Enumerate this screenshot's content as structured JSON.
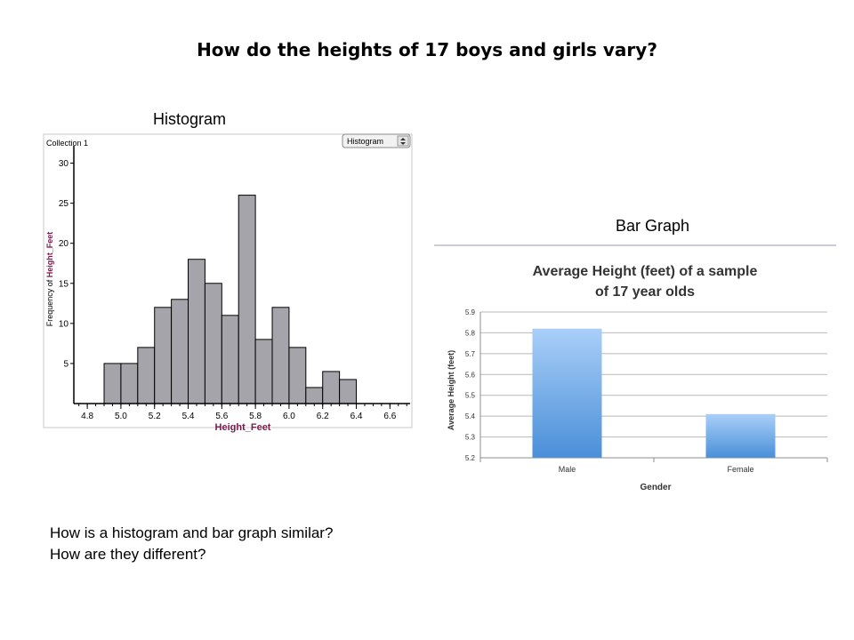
{
  "slide": {
    "title": "How do the heights of 17 boys and girls vary?",
    "histogram_label": "Histogram",
    "bar_graph_label": "Bar Graph",
    "question_1": "How is a histogram and bar graph similar?",
    "question_2": "How are they different?"
  },
  "histogram_panel": {
    "collection_label": "Collection 1",
    "dropdown_value": "Histogram"
  },
  "chart_data": [
    {
      "type": "bar",
      "subtype": "histogram",
      "xlabel": "Height_Feet",
      "ylabel_prefix": "Frequency of ",
      "ylabel_var": "Height_Feet",
      "bin_width": 0.1,
      "bins": [
        {
          "start": 4.9,
          "count": 5
        },
        {
          "start": 5.0,
          "count": 5
        },
        {
          "start": 5.1,
          "count": 7
        },
        {
          "start": 5.2,
          "count": 12
        },
        {
          "start": 5.3,
          "count": 13
        },
        {
          "start": 5.4,
          "count": 18
        },
        {
          "start": 5.5,
          "count": 15
        },
        {
          "start": 5.6,
          "count": 11
        },
        {
          "start": 5.7,
          "count": 26
        },
        {
          "start": 5.8,
          "count": 8
        },
        {
          "start": 5.9,
          "count": 12
        },
        {
          "start": 6.0,
          "count": 7
        },
        {
          "start": 6.1,
          "count": 2
        },
        {
          "start": 6.2,
          "count": 4
        },
        {
          "start": 6.3,
          "count": 3
        }
      ],
      "xlim": [
        4.72,
        6.72
      ],
      "ylim": [
        0,
        31.5
      ],
      "x_ticks": [
        "4.8",
        "5.0",
        "5.2",
        "5.4",
        "5.6",
        "5.8",
        "6.0",
        "6.2",
        "6.4",
        "6.6"
      ],
      "y_ticks": [
        "5",
        "10",
        "15",
        "20",
        "25",
        "30"
      ],
      "bar_color": "#a5a4aa",
      "label_color": "#7a1a4c"
    },
    {
      "type": "bar",
      "title_line1": "Average Height (feet) of a sample",
      "title_line2": "of 17 year olds",
      "xlabel": "Gender",
      "ylabel": "Average Height (feet)",
      "categories": [
        "Male",
        "Female"
      ],
      "values": [
        5.82,
        5.41
      ],
      "ylim": [
        5.2,
        5.9
      ],
      "y_ticks": [
        "5.2",
        "5.3",
        "5.4",
        "5.5",
        "5.6",
        "5.7",
        "5.8",
        "5.9"
      ],
      "bar_color_top": "#a9cff8",
      "bar_color_bottom": "#4a8fd9"
    }
  ]
}
